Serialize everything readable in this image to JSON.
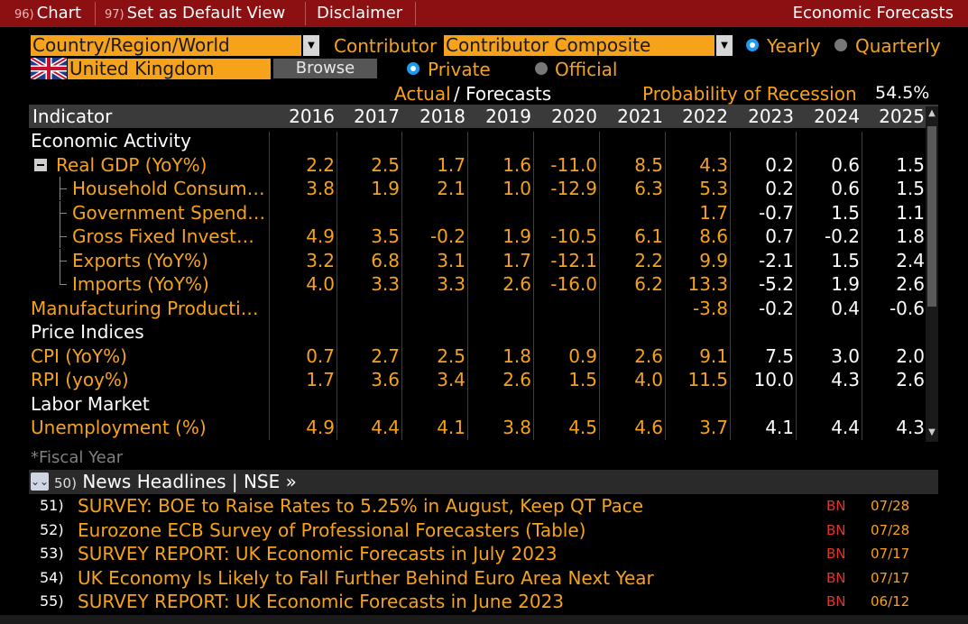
{
  "topbar": {
    "tabs": [
      {
        "num": "96)",
        "label": "Chart"
      },
      {
        "num": "97)",
        "label": "Set as Default View"
      },
      {
        "num": "",
        "label": "Disclaimer"
      }
    ],
    "title": "Economic Forecasts"
  },
  "controls": {
    "region_dropdown": "Country/Region/World",
    "contributor_label": "Contributor",
    "contributor_dropdown": "Contributor Composite",
    "yearly_label": "Yearly",
    "quarterly_label": "Quarterly",
    "country_value": "United Kingdom",
    "browse_label": "Browse",
    "private_label": "Private",
    "official_label": "Official",
    "actual_label": "Actual",
    "forecasts_label": "/ Forecasts",
    "recession_label": "Probability of Recession",
    "recession_value": "54.5%"
  },
  "table": {
    "indicator_header": "Indicator",
    "years": [
      "2016",
      "2017",
      "2018",
      "2019",
      "2020",
      "2021",
      "2022",
      "2023",
      "2024",
      "2025"
    ],
    "rows": [
      {
        "type": "section",
        "label": "Economic Activity"
      },
      {
        "type": "data",
        "label": "Real GDP (YoY%)",
        "level": 0,
        "expander": true,
        "values": [
          "2.2",
          "2.5",
          "1.7",
          "1.6",
          "-11.0",
          "8.5",
          "4.3",
          "0.2",
          "0.6",
          "1.5"
        ]
      },
      {
        "type": "data",
        "label": "Household Consum…",
        "level": 1,
        "values": [
          "3.8",
          "1.9",
          "2.1",
          "1.0",
          "-12.9",
          "6.3",
          "5.3",
          "0.2",
          "0.6",
          "1.5"
        ]
      },
      {
        "type": "data",
        "label": "Government Spend…",
        "level": 1,
        "values": [
          "",
          "",
          "",
          "",
          "",
          "",
          "1.7",
          "-0.7",
          "1.5",
          "1.1"
        ]
      },
      {
        "type": "data",
        "label": "Gross Fixed Invest…",
        "level": 1,
        "values": [
          "4.9",
          "3.5",
          "-0.2",
          "1.9",
          "-10.5",
          "6.1",
          "8.6",
          "0.7",
          "-0.2",
          "1.8"
        ]
      },
      {
        "type": "data",
        "label": "Exports (YoY%)",
        "level": 1,
        "values": [
          "3.2",
          "6.8",
          "3.1",
          "1.7",
          "-12.1",
          "2.2",
          "9.9",
          "-2.1",
          "1.5",
          "2.4"
        ]
      },
      {
        "type": "data",
        "label": "Imports (YoY%)",
        "level": 1,
        "last": true,
        "values": [
          "4.0",
          "3.3",
          "3.3",
          "2.6",
          "-16.0",
          "6.2",
          "13.3",
          "-5.2",
          "1.9",
          "2.6"
        ]
      },
      {
        "type": "data",
        "label": "Manufacturing Producti…",
        "level": -1,
        "values": [
          "",
          "",
          "",
          "",
          "",
          "",
          "-3.8",
          "-0.2",
          "0.4",
          "-0.6"
        ]
      },
      {
        "type": "section",
        "label": "Price Indices"
      },
      {
        "type": "data",
        "label": "CPI (YoY%)",
        "level": -1,
        "values": [
          "0.7",
          "2.7",
          "2.5",
          "1.8",
          "0.9",
          "2.6",
          "9.1",
          "7.5",
          "3.0",
          "2.0"
        ]
      },
      {
        "type": "data",
        "label": "RPI (yoy%)",
        "level": -1,
        "values": [
          "1.7",
          "3.6",
          "3.4",
          "2.6",
          "1.5",
          "4.0",
          "11.5",
          "10.0",
          "4.3",
          "2.6"
        ]
      },
      {
        "type": "section",
        "label": "Labor Market"
      },
      {
        "type": "data",
        "label": "Unemployment (%)",
        "level": -1,
        "values": [
          "4.9",
          "4.4",
          "4.1",
          "3.8",
          "4.5",
          "4.6",
          "3.7",
          "4.1",
          "4.4",
          "4.3"
        ]
      }
    ],
    "forecast_start_index": 7,
    "footnote": "*Fiscal Year"
  },
  "news": {
    "header_num": "50)",
    "header_label": "News Headlines | NSE »",
    "items": [
      {
        "idx": "51)",
        "headline": "SURVEY: BOE to Raise Rates to 5.25% in August, Keep QT Pace",
        "source": "BN",
        "date": "07/28"
      },
      {
        "idx": "52)",
        "headline": "Eurozone ECB Survey of Professional Forecasters (Table)",
        "source": "BN",
        "date": "07/28"
      },
      {
        "idx": "53)",
        "headline": "SURVEY REPORT: UK Economic Forecasts in July 2023",
        "source": "BN",
        "date": "07/17"
      },
      {
        "idx": "54)",
        "headline": "UK Economy Is Likely to Fall Further Behind Euro Area Next Year",
        "source": "BN",
        "date": "07/17"
      },
      {
        "idx": "55)",
        "headline": "SURVEY REPORT: UK Economic Forecasts in June 2023",
        "source": "BN",
        "date": "06/12"
      }
    ]
  },
  "colors": {
    "accent": "#f7a21b",
    "topbar": "#8c0f12",
    "radio_selected": "#1e9bf0",
    "news_source": "#e0342c"
  }
}
